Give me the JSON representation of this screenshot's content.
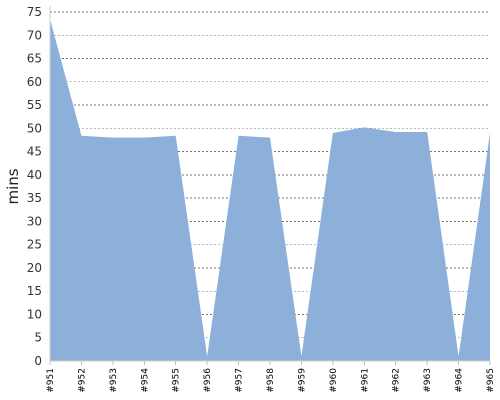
{
  "chart_data": {
    "type": "area",
    "categories": [
      "#951",
      "#952",
      "#953",
      "#954",
      "#955",
      "#956",
      "#957",
      "#958",
      "#959",
      "#960",
      "#961",
      "#962",
      "#963",
      "#964",
      "#965"
    ],
    "values": [
      73.5,
      48.4,
      48.0,
      48.0,
      48.4,
      1.0,
      48.4,
      48.0,
      1.0,
      49.0,
      50.2,
      49.2,
      49.2,
      1.0,
      49.0
    ],
    "title": "",
    "xlabel": "",
    "ylabel": "mins",
    "ylim": [
      0,
      75
    ],
    "yticks": [
      0,
      5,
      10,
      15,
      20,
      25,
      30,
      35,
      40,
      45,
      50,
      55,
      60,
      65,
      70,
      75
    ],
    "grid": true,
    "colors": {
      "area_fill": "#8db0da",
      "grid": "#777777"
    }
  }
}
